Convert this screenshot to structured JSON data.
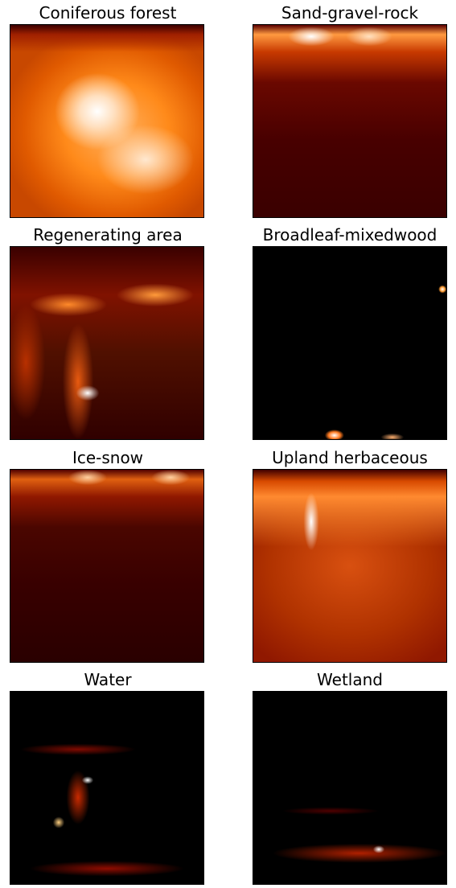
{
  "panels": [
    {
      "title": "Coniferous forest"
    },
    {
      "title": "Sand-gravel-rock"
    },
    {
      "title": "Regenerating area"
    },
    {
      "title": "Broadleaf-mixedwood"
    },
    {
      "title": "Ice-snow"
    },
    {
      "title": "Upland herbaceous"
    },
    {
      "title": "Water"
    },
    {
      "title": "Wetland"
    }
  ]
}
